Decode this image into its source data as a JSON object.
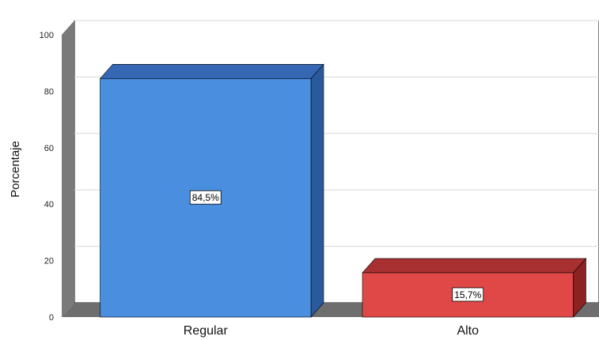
{
  "chart_data": {
    "type": "bar",
    "style": "3d",
    "categories": [
      "Regular",
      "Alto"
    ],
    "values": [
      84.5,
      15.7
    ],
    "data_labels": [
      "84,5%",
      "15,7%"
    ],
    "ylabel": "Porcentaje",
    "xlabel": "",
    "ylim": [
      0,
      100
    ],
    "yticks": [
      0,
      20,
      40,
      60,
      80,
      100
    ],
    "grid": true,
    "legend": "none",
    "colors": {
      "bars": [
        "#4a8ee0",
        "#e04848"
      ],
      "bar_sides": [
        "#2a5a9c",
        "#8c2222"
      ],
      "bar_tops": [
        "#3567b4",
        "#a83030"
      ],
      "wall": "#7a7a7a",
      "floor": "#6e6e6e",
      "gridline": "#d8d8d8"
    }
  }
}
